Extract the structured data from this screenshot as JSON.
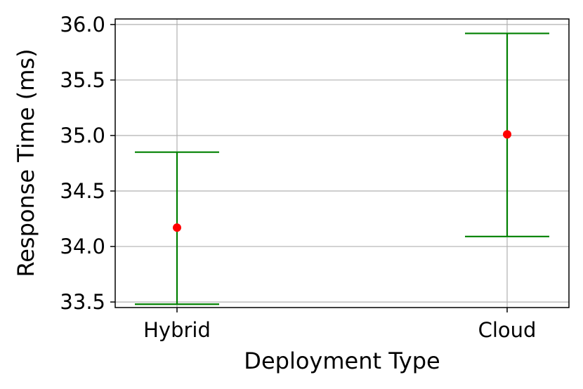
{
  "chart_data": {
    "type": "scatter",
    "xlabel": "Deployment Type",
    "ylabel": "Response Time (ms)",
    "categories": [
      "Hybrid",
      "Cloud"
    ],
    "series": [
      {
        "values": [
          34.17,
          35.01
        ],
        "error_low": [
          33.48,
          34.09
        ],
        "error_high": [
          34.85,
          35.92
        ]
      }
    ],
    "ylim": [
      33.45,
      36.05
    ],
    "yticks": [
      33.5,
      34.0,
      34.5,
      35.0,
      35.5,
      36.0
    ],
    "ytick_labels": [
      "33.5",
      "34.0",
      "34.5",
      "35.0",
      "35.5",
      "36.0"
    ],
    "grid": true,
    "colors": {
      "marker": "#ff0000",
      "errorbar": "#008000",
      "grid": "#b0b0b0"
    }
  }
}
